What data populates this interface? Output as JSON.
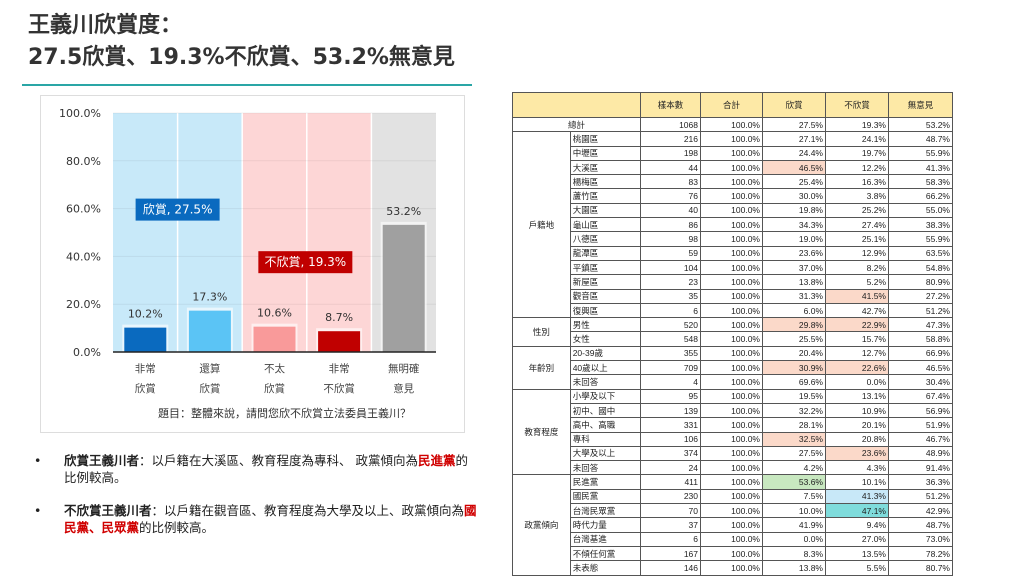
{
  "title": {
    "line1": "王義川欣賞度：",
    "line2": "27.5欣賞、19.3%不欣賞、53.2%無意見"
  },
  "chart_data": {
    "type": "bar",
    "categories": [
      [
        "非常",
        "欣賞"
      ],
      [
        "還算",
        "欣賞"
      ],
      [
        "不太",
        "欣賞"
      ],
      [
        "非常",
        "不欣賞"
      ],
      [
        "無明確",
        "意見"
      ]
    ],
    "values": [
      10.2,
      17.3,
      10.6,
      8.7,
      53.2
    ],
    "value_labels": [
      "10.2%",
      "17.3%",
      "10.6%",
      "8.7%",
      "53.2%"
    ],
    "bar_colors": [
      "#0a6abf",
      "#5bc4f5",
      "#f99a9a",
      "#c00000",
      "#a0a0a0"
    ],
    "band_colors": [
      "#c8e9f9",
      "#c8e9f9",
      "#fdd6d6",
      "#fdd6d6",
      "#e2e2e2"
    ],
    "ylim": [
      0,
      100
    ],
    "yticks": [
      "0.0%",
      "20.0%",
      "40.0%",
      "60.0%",
      "80.0%",
      "100.0%"
    ],
    "annotations": [
      {
        "text": "欣賞, 27.5%",
        "color": "#0a6abf"
      },
      {
        "text": "不欣賞, 19.3%",
        "color": "#c00000"
      }
    ],
    "caption": "題目：整體來說，請問您欣不欣賞立法委員王義川？",
    "grid": true
  },
  "bullets": [
    {
      "bold": "欣賞王義川者",
      "text1": "：以戶籍在大溪區、教育程度為專科、 政黨傾向為",
      "red": "民進黨",
      "text2": "的比例較高。"
    },
    {
      "bold": "不欣賞王義川者",
      "text1": "：以戶籍在觀音區、教育程度為大學及以上、政黨傾向為",
      "red": "國民黨、民眾黨",
      "text2": "的比例較高。"
    }
  ],
  "table": {
    "headers": [
      "樣本數",
      "合計",
      "欣賞",
      "不欣賞",
      "無意見"
    ],
    "total": {
      "label": "總計",
      "values": [
        "1068",
        "100.0%",
        "27.5%",
        "19.3%",
        "53.2%"
      ]
    },
    "groups": [
      {
        "name": "戶籍地",
        "rows": [
          [
            "桃園區",
            "216",
            "100.0%",
            "27.1%",
            "24.1%",
            "48.7%"
          ],
          [
            "中壢區",
            "198",
            "100.0%",
            "24.4%",
            "19.7%",
            "55.9%"
          ],
          [
            "大溪區",
            "44",
            "100.0%",
            "46.5%",
            "12.2%",
            "41.3%"
          ],
          [
            "楊梅區",
            "83",
            "100.0%",
            "25.4%",
            "16.3%",
            "58.3%"
          ],
          [
            "蘆竹區",
            "76",
            "100.0%",
            "30.0%",
            "3.8%",
            "66.2%"
          ],
          [
            "大園區",
            "40",
            "100.0%",
            "19.8%",
            "25.2%",
            "55.0%"
          ],
          [
            "龜山區",
            "86",
            "100.0%",
            "34.3%",
            "27.4%",
            "38.3%"
          ],
          [
            "八德區",
            "98",
            "100.0%",
            "19.0%",
            "25.1%",
            "55.9%"
          ],
          [
            "龍潭區",
            "59",
            "100.0%",
            "23.6%",
            "12.9%",
            "63.5%"
          ],
          [
            "平鎮區",
            "104",
            "100.0%",
            "37.0%",
            "8.2%",
            "54.8%"
          ],
          [
            "新屋區",
            "23",
            "100.0%",
            "13.8%",
            "5.2%",
            "80.9%"
          ],
          [
            "觀音區",
            "35",
            "100.0%",
            "31.3%",
            "41.5%",
            "27.2%"
          ],
          [
            "復興區",
            "6",
            "100.0%",
            "6.0%",
            "42.7%",
            "51.2%"
          ]
        ]
      },
      {
        "name": "性別",
        "rows": [
          [
            "男性",
            "520",
            "100.0%",
            "29.8%",
            "22.9%",
            "47.3%"
          ],
          [
            "女性",
            "548",
            "100.0%",
            "25.5%",
            "15.7%",
            "58.8%"
          ]
        ]
      },
      {
        "name": "年齡別",
        "rows": [
          [
            "20-39歲",
            "355",
            "100.0%",
            "20.4%",
            "12.7%",
            "66.9%"
          ],
          [
            "40歲以上",
            "709",
            "100.0%",
            "30.9%",
            "22.6%",
            "46.5%"
          ],
          [
            "未回答",
            "4",
            "100.0%",
            "69.6%",
            "0.0%",
            "30.4%"
          ]
        ]
      },
      {
        "name": "教育程度",
        "rows": [
          [
            "小學及以下",
            "95",
            "100.0%",
            "19.5%",
            "13.1%",
            "67.4%"
          ],
          [
            "初中、國中",
            "139",
            "100.0%",
            "32.2%",
            "10.9%",
            "56.9%"
          ],
          [
            "高中、高職",
            "331",
            "100.0%",
            "28.1%",
            "20.1%",
            "51.9%"
          ],
          [
            "專科",
            "106",
            "100.0%",
            "32.5%",
            "20.8%",
            "46.7%"
          ],
          [
            "大學及以上",
            "374",
            "100.0%",
            "27.5%",
            "23.6%",
            "48.9%"
          ],
          [
            "未回答",
            "24",
            "100.0%",
            "4.2%",
            "4.3%",
            "91.4%"
          ]
        ]
      },
      {
        "name": "政黨傾向",
        "rows": [
          [
            "民進黨",
            "411",
            "100.0%",
            "53.6%",
            "10.1%",
            "36.3%"
          ],
          [
            "國民黨",
            "230",
            "100.0%",
            "7.5%",
            "41.3%",
            "51.2%"
          ],
          [
            "台灣民眾黨",
            "70",
            "100.0%",
            "10.0%",
            "47.1%",
            "42.9%"
          ],
          [
            "時代力量",
            "37",
            "100.0%",
            "41.9%",
            "9.4%",
            "48.7%"
          ],
          [
            "台灣基進",
            "6",
            "100.0%",
            "0.0%",
            "27.0%",
            "73.0%"
          ],
          [
            "不傾任何黨",
            "167",
            "100.0%",
            "8.3%",
            "13.5%",
            "78.2%"
          ],
          [
            "未表態",
            "146",
            "100.0%",
            "13.8%",
            "5.5%",
            "80.7%"
          ]
        ]
      }
    ],
    "highlights": {
      "大溪區|欣賞": "#fbd9c9",
      "觀音區|不欣賞": "#fbd9c9",
      "男性|欣賞": "#fbd9c9",
      "男性|不欣賞": "#fbd9c9",
      "40歲以上|欣賞": "#fbd9c9",
      "40歲以上|不欣賞": "#fbd9c9",
      "專科|欣賞": "#fbd9c9",
      "大學及以上|不欣賞": "#fbd9c9",
      "民進黨|欣賞": "#c8e8c0",
      "國民黨|不欣賞": "#c8e8f8",
      "台灣民眾黨|不欣賞": "#7fdcdc"
    }
  }
}
